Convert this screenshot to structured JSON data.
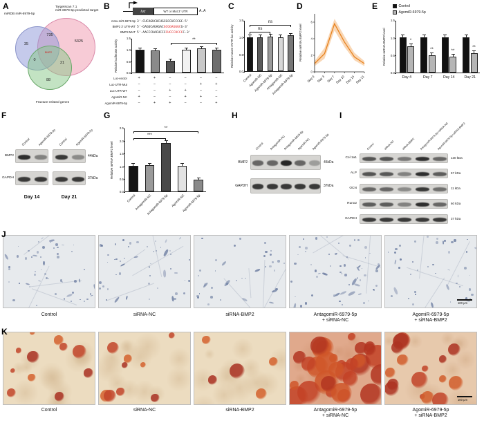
{
  "figure": {
    "panel_letters": [
      "A",
      "B",
      "C",
      "D",
      "E",
      "F",
      "G",
      "H",
      "I",
      "J",
      "K"
    ]
  },
  "venn": {
    "set1_label": "miRDB miR-6979-5p",
    "set2_label_line1": "Targetscan 7.1",
    "set2_label_line2": "miR-6979-5p predicted target",
    "set3_label": "Fracture related genes",
    "count_set1_only": "35",
    "count_set1_set2": "735",
    "count_set2_only": "5325",
    "count_set1_set3": "0",
    "count_set2_set3": "21",
    "count_set3_only": "88",
    "center_genes": "BMP2",
    "colors": {
      "set1": "#8a93c9",
      "set2": "#e07a95",
      "set3": "#6aa86a"
    }
  },
  "luciferase_construct": {
    "luc_label": "luc",
    "utr_label": "WT or Mut 3' UTR",
    "polya_label": "A..A",
    "sequences": [
      {
        "name": "mmu-miR-6979-5p",
        "pre": "3'-CUCAGUCUCUGCGCCUCCCGC-5'",
        "red": "",
        "post": ""
      },
      {
        "name": "BMP2 3' UTR-WT",
        "pre": "5'-GAGUCAGAGAC",
        "red": "GCGGAGGGC",
        "post": "G-3'"
      },
      {
        "name": "BMP2-MUT",
        "pre": "5'-AACCCUACUCCC",
        "red": "CUCCCUCCC",
        "post": "C-3'"
      }
    ]
  },
  "matrixB": {
    "rows": [
      {
        "label": "Luc-vector",
        "cells": [
          "+",
          "+",
          "−",
          "−",
          "−",
          "−"
        ]
      },
      {
        "label": "Luc-UTR-Mut",
        "cells": [
          "−",
          "−",
          "−",
          "−",
          "+",
          "+"
        ]
      },
      {
        "label": "Luc-UTR-WT",
        "cells": [
          "−",
          "−",
          "+",
          "+",
          "−",
          "−"
        ]
      },
      {
        "label": "AgomiR-NC",
        "cells": [
          "+",
          "−",
          "−",
          "+",
          "+",
          "−"
        ]
      },
      {
        "label": "AgomiR-6979-5p",
        "cells": [
          "−",
          "+",
          "+",
          "−",
          "−",
          "+"
        ]
      }
    ]
  },
  "chart_data": [
    {
      "panel": "B",
      "type": "bar",
      "ylabel": "Relative luciferase activity",
      "ylim": [
        0,
        1.5
      ],
      "yticks": [
        "0.0",
        "0.5",
        "1.0",
        "1.5"
      ],
      "err": 0.06,
      "values": [
        1.0,
        0.97,
        0.52,
        1.0,
        1.05,
        0.98
      ],
      "colors": [
        "#141414",
        "#8a8a8a",
        "#565656",
        "#f2f2f2",
        "#c8c8c8",
        "#6e6e6e"
      ],
      "sig": [
        {
          "from": 2,
          "to": 5,
          "text": "**"
        }
      ]
    },
    {
      "panel": "C",
      "type": "bar",
      "ylabel": "Relative mutant 3'UTR luc activity",
      "ylim": [
        0,
        1.5
      ],
      "yticks": [
        "0.0",
        "0.5",
        "1.0",
        "1.5"
      ],
      "err": 0.05,
      "categories": [
        "Control",
        "AgomiR-NC",
        "AgomiR-6979-5p",
        "AntagomiR-NC",
        "AntagomiR-6979-5p"
      ],
      "values": [
        1.0,
        1.0,
        1.02,
        1.0,
        1.05
      ],
      "colors": [
        "#141414",
        "#5a5a5a",
        "#9a9a9a",
        "#d8d8d8",
        "#787878"
      ],
      "sig": [
        {
          "from": 0,
          "to": 2,
          "text": "ns"
        },
        {
          "from": 0,
          "to": 4,
          "text": "ns"
        }
      ]
    },
    {
      "panel": "D",
      "type": "line",
      "ylabel": "Relative mRNA BMP2 level",
      "x": [
        "Day 0",
        "Day 3",
        "Day 7",
        "Day 10",
        "Day 14",
        "Day 21"
      ],
      "values": [
        1.0,
        2.2,
        5.8,
        3.6,
        1.8,
        1.0
      ],
      "upper": [
        1.3,
        2.9,
        6.4,
        4.3,
        2.3,
        1.3
      ],
      "lower": [
        0.7,
        1.6,
        5.0,
        3.0,
        1.4,
        0.7
      ],
      "ylim": [
        0,
        7
      ],
      "yticks": [
        "0",
        "2",
        "4",
        "6"
      ],
      "line_color": "#e8821e",
      "band_color": "rgba(238,150,60,0.38)"
    },
    {
      "panel": "E",
      "type": "bar",
      "grouped": true,
      "ylabel": "Relative mRNA BMP2 level",
      "ylim": [
        0,
        1.5
      ],
      "yticks": [
        "0.0",
        "0.5",
        "1.0",
        "1.5"
      ],
      "err": 0.06,
      "categories": [
        "Day 4",
        "Day 7",
        "Day 14",
        "Day 21"
      ],
      "series": [
        {
          "name": "Control",
          "color": "#111111",
          "values": [
            1.0,
            1.0,
            1.0,
            1.0
          ]
        },
        {
          "name": "AgomiR-6979-5p",
          "color": "#b5b5b5",
          "values": [
            0.75,
            0.5,
            0.45,
            0.55
          ]
        }
      ],
      "sig": [
        "*",
        "**",
        "**",
        "**"
      ]
    },
    {
      "panel": "G",
      "type": "bar",
      "ylabel": "Relative mRNA BMP2 level",
      "ylim": [
        0,
        2.5
      ],
      "yticks": [
        "0.0",
        "0.5",
        "1.0",
        "1.5",
        "2.0",
        "2.5"
      ],
      "err": 0.08,
      "categories": [
        "Control",
        "AntagomiR-NC",
        "AntagomiR-6979-5p",
        "AgomiR-NC",
        "AgomiR-6979-5p"
      ],
      "values": [
        1.0,
        1.02,
        1.9,
        1.0,
        0.45
      ],
      "colors": [
        "#141414",
        "#9a9a9a",
        "#4a4a4a",
        "#e2e2e2",
        "#8a8a8a"
      ],
      "sig": [
        {
          "from": 0,
          "to": 2,
          "text": "***"
        },
        {
          "from": 0,
          "to": 4,
          "text": "**"
        }
      ]
    }
  ],
  "blotF": {
    "lane_labels": [
      "Control",
      "AgomiR-6979-5p",
      "Control",
      "AgomiR-6979-5p"
    ],
    "rows": [
      {
        "protein": "BMP2",
        "kda": "44kDa",
        "intensities": [
          0.9,
          0.45,
          0.85,
          0.4
        ]
      },
      {
        "protein": "GAPDH",
        "kda": "37kDa",
        "intensities": [
          0.85,
          0.85,
          0.85,
          0.85
        ]
      }
    ],
    "group_labels": [
      "Day 14",
      "Day 21"
    ]
  },
  "blotH": {
    "lane_labels": [
      "Control",
      "AntagomiR-NC",
      "AntagomiR-6979-5p",
      "AgomiR-NC",
      "AgomiR-6979-5p"
    ],
    "rows": [
      {
        "protein": "BMP2",
        "kda": "45kDa",
        "intensities": [
          0.6,
          0.6,
          0.95,
          0.6,
          0.3
        ]
      },
      {
        "protein": "GAPDH",
        "kda": "37kDa",
        "intensities": [
          0.85,
          0.85,
          0.85,
          0.85,
          0.85
        ]
      }
    ]
  },
  "blotI": {
    "lane_labels": [
      "Control",
      "siRNA-NC",
      "siRNA-BMP2",
      "AntagomiR-6979-5p+siRNA-NC",
      "AgomiR-6979-5p+siRNA-BMP2"
    ],
    "rows": [
      {
        "protein": "Col 1a1",
        "kda": "130 kDa",
        "intensities": [
          0.7,
          0.7,
          0.5,
          0.9,
          0.6
        ]
      },
      {
        "protein": "ALP",
        "kda": "57 kDa",
        "intensities": [
          0.7,
          0.68,
          0.45,
          0.9,
          0.65
        ]
      },
      {
        "protein": "OCN",
        "kda": "11 kDa",
        "intensities": [
          0.6,
          0.6,
          0.4,
          0.85,
          0.55
        ]
      },
      {
        "protein": "Runx2",
        "kda": "60 kDa",
        "intensities": [
          0.65,
          0.65,
          0.45,
          0.9,
          0.6
        ]
      },
      {
        "protein": "GAPDH",
        "kda": "37 kDa",
        "intensities": [
          0.85,
          0.85,
          0.85,
          0.85,
          0.85
        ]
      }
    ]
  },
  "micrographsJ": {
    "images": [
      {
        "label1": "Control",
        "label2": "",
        "dot_density": 55
      },
      {
        "label1": "siRNA-NC",
        "label2": "",
        "dot_density": 50
      },
      {
        "label1": "siRNA-BMP2",
        "label2": "",
        "dot_density": 38
      },
      {
        "label1": "AntagomiR-6979-5p",
        "label2": "+ siRNA-NC",
        "dot_density": 60
      },
      {
        "label1": "AgomiR-6979-5p",
        "label2": "+ siRNA-BMP2",
        "dot_density": 45
      }
    ],
    "scale_bar": "100 μm"
  },
  "micrographsK": {
    "images": [
      {
        "label1": "Control",
        "label2": "",
        "blob_count": 11,
        "overlay": 0
      },
      {
        "label1": "siRNA-NC",
        "label2": "",
        "blob_count": 9,
        "overlay": 0
      },
      {
        "label1": "siRNA-BMP2",
        "label2": "",
        "blob_count": 5,
        "overlay": 0
      },
      {
        "label1": "AntagomiR-6979-5p",
        "label2": "+ siRNA-NC",
        "blob_count": 30,
        "overlay": 0.32
      },
      {
        "label1": "AgomiR-6979-5p",
        "label2": "+ siRNA-BMP2",
        "blob_count": 16,
        "overlay": 0.12
      }
    ],
    "scale_bar": "100 μm"
  }
}
